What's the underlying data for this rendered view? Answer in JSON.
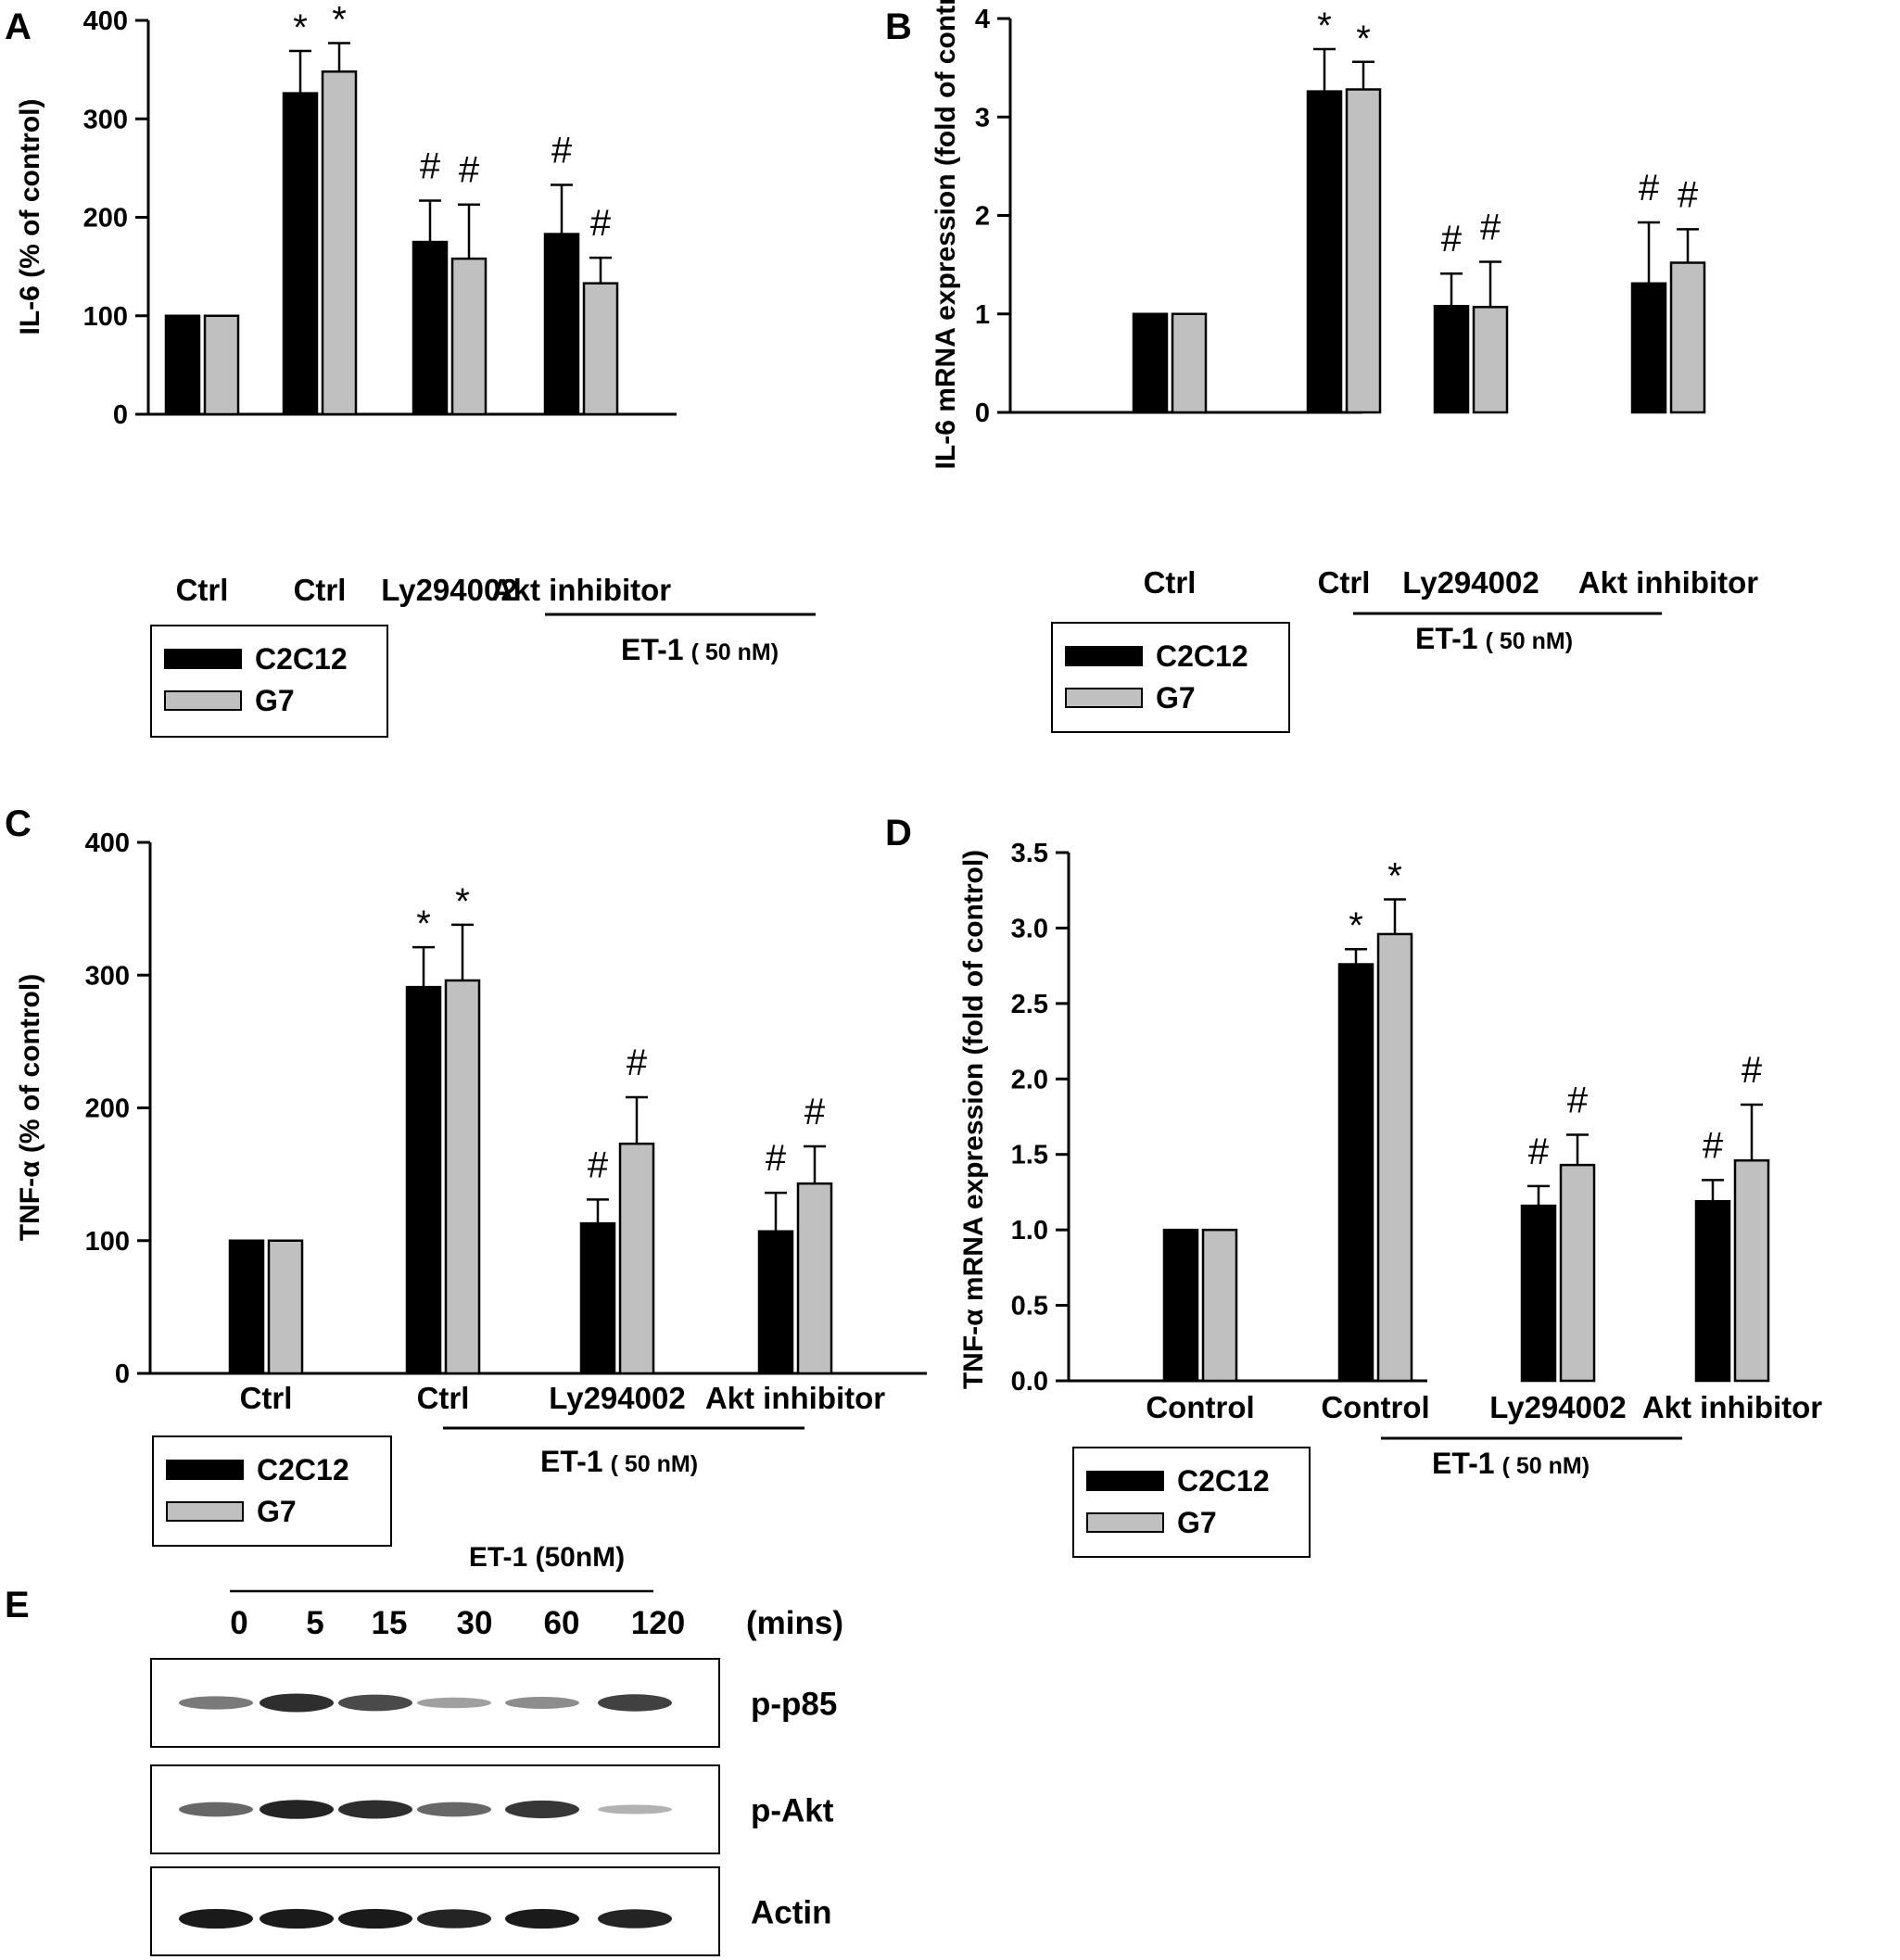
{
  "colors": {
    "C2C12": "#000000",
    "G7": "#c0c0c0",
    "axis": "#000000"
  },
  "panels": [
    {
      "id": "A",
      "type": "bar",
      "ylabel": "IL-6 (% of control)",
      "yticks": [
        "0",
        "100",
        "200",
        "300",
        "400"
      ],
      "ylim": [
        0,
        400
      ],
      "tick_values": [
        0,
        100,
        200,
        300,
        400
      ],
      "categories": [
        "Ctrl",
        "Ctrl",
        "Ly294002",
        "Akt inhibitor"
      ],
      "series": [
        {
          "name": "C2C12",
          "values": [
            100,
            326,
            175,
            183
          ],
          "errors": [
            0,
            43,
            42,
            50
          ]
        },
        {
          "name": "G7",
          "values": [
            100,
            348,
            158,
            133
          ],
          "errors": [
            0,
            29,
            55,
            26
          ]
        }
      ],
      "marks": [
        [
          "",
          ""
        ],
        [
          "*",
          "*"
        ],
        [
          "#",
          "#"
        ],
        [
          "#",
          "#"
        ]
      ],
      "treatment": {
        "label": "ET-1",
        "dose": "( 50 nM)"
      },
      "legend": [
        "C2C12",
        "G7"
      ]
    },
    {
      "id": "B",
      "type": "bar",
      "ylabel": "IL-6 mRNA expression (fold of control)",
      "yticks": [
        "0",
        "1",
        "2",
        "3",
        "4"
      ],
      "ylim": [
        0,
        4
      ],
      "tick_values": [
        0,
        1,
        2,
        3,
        4
      ],
      "categories": [
        "Ctrl",
        "Ctrl",
        "Ly294002",
        "Akt inhibitor"
      ],
      "series": [
        {
          "name": "C2C12",
          "values": [
            1.0,
            3.26,
            1.08,
            1.31
          ],
          "errors": [
            0,
            0.43,
            0.33,
            0.62
          ]
        },
        {
          "name": "G7",
          "values": [
            1.0,
            3.28,
            1.07,
            1.52
          ],
          "errors": [
            0,
            0.28,
            0.46,
            0.34
          ]
        }
      ],
      "marks": [
        [
          "",
          ""
        ],
        [
          "*",
          "*"
        ],
        [
          "#",
          "#"
        ],
        [
          "#",
          "#"
        ]
      ],
      "treatment": {
        "label": "ET-1",
        "dose": "( 50 nM)"
      },
      "legend": [
        "C2C12",
        "G7"
      ]
    },
    {
      "id": "C",
      "type": "bar",
      "ylabel": "TNF-α (% of control)",
      "yticks": [
        "0",
        "100",
        "200",
        "300",
        "400"
      ],
      "ylim": [
        0,
        400
      ],
      "tick_values": [
        0,
        100,
        200,
        300,
        400
      ],
      "categories": [
        "Ctrl",
        "Ctrl",
        "Ly294002",
        "Akt inhibitor"
      ],
      "series": [
        {
          "name": "C2C12",
          "values": [
            100,
            291,
            113,
            107
          ],
          "errors": [
            0,
            30,
            18,
            29
          ]
        },
        {
          "name": "G7",
          "values": [
            100,
            296,
            173,
            143
          ],
          "errors": [
            0,
            42,
            35,
            28
          ]
        }
      ],
      "marks": [
        [
          "",
          ""
        ],
        [
          "*",
          "*"
        ],
        [
          "#",
          "#"
        ],
        [
          "#",
          "#"
        ]
      ],
      "treatment": {
        "label": "ET-1",
        "dose": "( 50 nM)"
      },
      "legend": [
        "C2C12",
        "G7"
      ]
    },
    {
      "id": "D",
      "type": "bar",
      "ylabel": "TNF-α mRNA expression (fold of control)",
      "yticks": [
        "0.0",
        "0.5",
        "1.0",
        "1.5",
        "2.0",
        "2.5",
        "3.0",
        "3.5"
      ],
      "ylim": [
        0,
        3.5
      ],
      "tick_values": [
        0,
        0.5,
        1.0,
        1.5,
        2.0,
        2.5,
        3.0,
        3.5
      ],
      "categories": [
        "Control",
        "Control",
        "Ly294002",
        "Akt inhibitor"
      ],
      "series": [
        {
          "name": "C2C12",
          "values": [
            1.0,
            2.76,
            1.16,
            1.19
          ],
          "errors": [
            0,
            0.1,
            0.13,
            0.14
          ]
        },
        {
          "name": "G7",
          "values": [
            1.0,
            2.96,
            1.43,
            1.46
          ],
          "errors": [
            0,
            0.23,
            0.2,
            0.37
          ]
        }
      ],
      "marks": [
        [
          "",
          ""
        ],
        [
          "*",
          "*"
        ],
        [
          "#",
          "#"
        ],
        [
          "#",
          "#"
        ]
      ],
      "treatment": {
        "label": "ET-1",
        "dose": "( 50 nM)"
      },
      "legend": [
        "C2C12",
        "G7"
      ]
    }
  ],
  "panel_e": {
    "id": "E",
    "treatment": "ET-1 (50nM)",
    "times": [
      "0",
      "5",
      "15",
      "30",
      "60",
      "120"
    ],
    "unit": "(mins)",
    "blots": [
      {
        "name": "p-p85",
        "intensity": [
          0.45,
          0.85,
          0.7,
          0.25,
          0.35,
          0.75
        ]
      },
      {
        "name": "p-Akt",
        "intensity": [
          0.55,
          0.9,
          0.85,
          0.55,
          0.8,
          0.15
        ]
      },
      {
        "name": "Actin",
        "intensity": [
          0.95,
          0.95,
          0.95,
          0.9,
          0.95,
          0.9
        ]
      }
    ]
  }
}
